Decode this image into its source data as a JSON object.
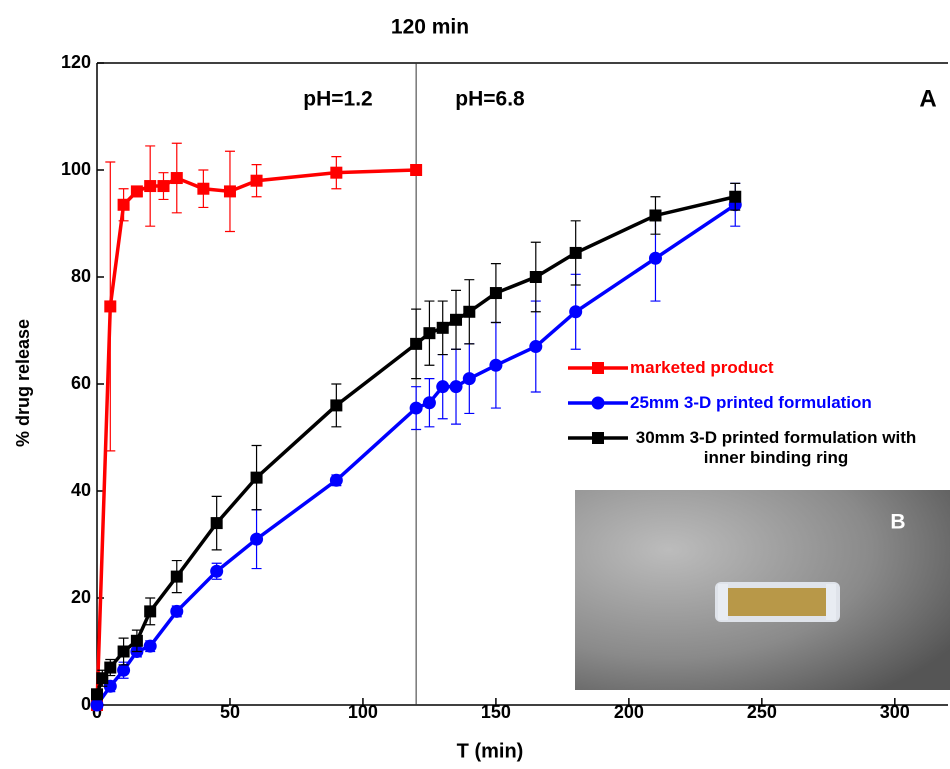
{
  "chart_data": {
    "type": "line",
    "title": "120 min",
    "x_label": "T (min)",
    "y_label": "% drug release",
    "annotations": [
      "pH=1.2",
      "pH=6.8",
      "A",
      "B"
    ],
    "divider_x": 120,
    "xlim": [
      0,
      320
    ],
    "ylim": [
      0,
      120
    ],
    "xticks": [
      0,
      50,
      100,
      150,
      200,
      250,
      300
    ],
    "yticks": [
      0,
      20,
      40,
      60,
      80,
      100,
      120
    ],
    "series": [
      {
        "name": "marketed product",
        "color": "#ff0000",
        "marker": "square",
        "x": [
          0,
          5,
          10,
          15,
          20,
          25,
          30,
          40,
          50,
          60,
          90,
          120
        ],
        "values": [
          0,
          74.5,
          93.5,
          96,
          97,
          97,
          98.5,
          96.5,
          96,
          98,
          99.5,
          100
        ],
        "errors": [
          0,
          27,
          3,
          1,
          7.5,
          2.5,
          6.5,
          3.5,
          7.5,
          3,
          3,
          0
        ]
      },
      {
        "name": "25mm 3-D printed formulation",
        "color": "#0000ff",
        "marker": "circle",
        "x": [
          0,
          5,
          10,
          15,
          20,
          30,
          45,
          60,
          90,
          120,
          125,
          130,
          135,
          140,
          150,
          165,
          180,
          210,
          240
        ],
        "values": [
          0,
          3.5,
          6.5,
          10,
          11,
          17.5,
          25,
          31,
          42,
          55.5,
          56.5,
          59.5,
          59.5,
          61,
          63.5,
          67,
          73.5,
          83.5,
          93.5
        ],
        "errors": [
          0,
          1,
          1.5,
          1,
          1,
          1,
          1.5,
          5.5,
          1,
          4,
          4.5,
          6,
          7,
          6.5,
          8,
          8.5,
          7,
          8,
          4
        ]
      },
      {
        "name": "30mm 3-D printed formulation with inner binding ring",
        "color": "#000000",
        "marker": "square",
        "x": [
          0,
          2,
          5,
          10,
          15,
          20,
          30,
          45,
          60,
          90,
          120,
          125,
          130,
          135,
          140,
          150,
          165,
          180,
          210,
          240
        ],
        "values": [
          2,
          5,
          7,
          10,
          12,
          17.5,
          24,
          34,
          42.5,
          56,
          67.5,
          69.5,
          70.5,
          72,
          73.5,
          77,
          80,
          84.5,
          91.5,
          95
        ],
        "errors": [
          0,
          1.5,
          1.5,
          2.5,
          2,
          2.5,
          3,
          5,
          6,
          4,
          6.5,
          6,
          5,
          5.5,
          6,
          5.5,
          6.5,
          6,
          3.5,
          2.5
        ]
      }
    ]
  }
}
